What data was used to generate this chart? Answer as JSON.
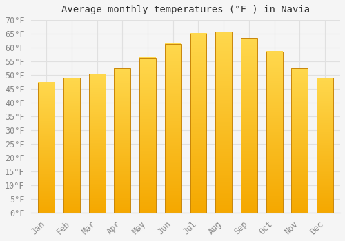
{
  "title": "Average monthly temperatures (°F ) in Navia",
  "months": [
    "Jan",
    "Feb",
    "Mar",
    "Apr",
    "May",
    "Jun",
    "Jul",
    "Aug",
    "Sep",
    "Oct",
    "Nov",
    "Dec"
  ],
  "values": [
    47.3,
    49.0,
    50.5,
    52.5,
    56.3,
    61.3,
    65.1,
    65.7,
    63.5,
    58.6,
    52.5,
    49.0
  ],
  "bar_color_bottom": "#F5A800",
  "bar_color_top": "#FFD84D",
  "bar_edge_color": "#C8860A",
  "ylim": [
    0,
    70
  ],
  "yticks": [
    0,
    5,
    10,
    15,
    20,
    25,
    30,
    35,
    40,
    45,
    50,
    55,
    60,
    65,
    70
  ],
  "grid_color": "#e0e0e0",
  "bg_color": "#f5f5f5",
  "plot_bg_color": "#f5f5f5",
  "title_fontsize": 10,
  "tick_fontsize": 8.5,
  "bar_width": 0.65
}
